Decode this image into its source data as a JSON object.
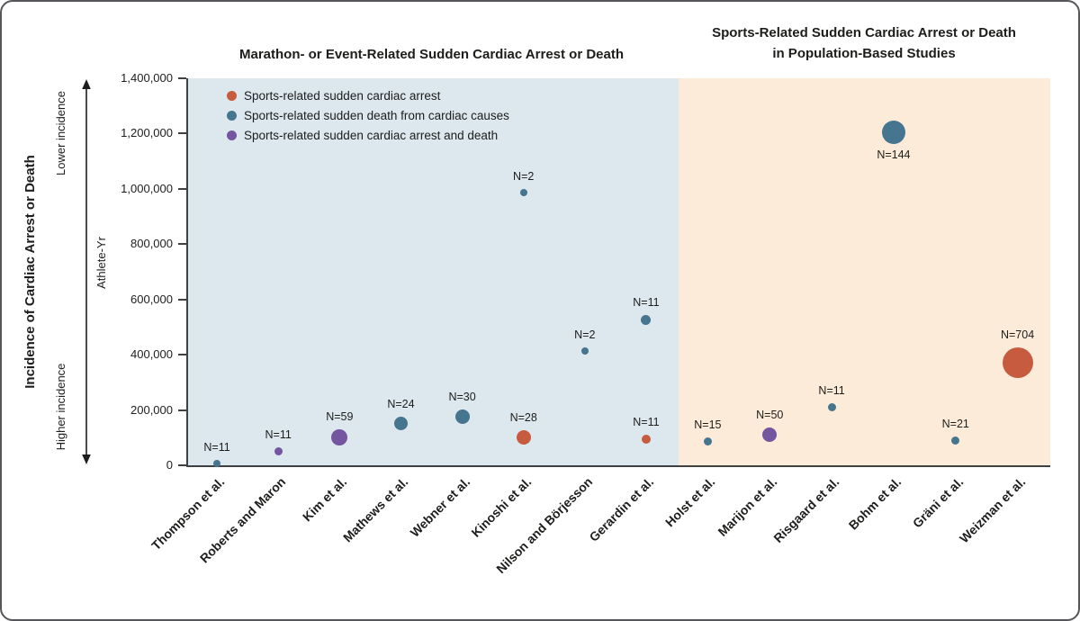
{
  "figure": {
    "left_panel_title": "Marathon- or Event-Related Sudden Cardiac Arrest or Death",
    "right_panel_title_line1": "Sports-Related Sudden Cardiac Arrest or Death",
    "right_panel_title_line2": "in Population-Based Studies",
    "y_axis_outer_label": "Incidence of Cardiac Arrest or Death",
    "arrow_top_label": "Lower incidence",
    "arrow_bottom_label": "Higher incidence",
    "y_axis_unit": "Athlete-Yr"
  },
  "legend": {
    "items": [
      {
        "label": "Sports-related sudden cardiac arrest",
        "series": "arrest",
        "color": "#c75b40"
      },
      {
        "label": "Sports-related sudden death from cardiac causes",
        "series": "death",
        "color": "#45758f"
      },
      {
        "label": "Sports-related sudden cardiac arrest and death",
        "series": "arrest_and_death",
        "color": "#7355a0"
      }
    ]
  },
  "chart_data": {
    "type": "scatter",
    "ylabel": "Athlete-Yr",
    "ylim": [
      0,
      1400000
    ],
    "yticks": [
      0,
      200000,
      400000,
      600000,
      800000,
      1000000,
      1200000,
      1400000
    ],
    "grid": false,
    "legend_position": "top-left inside plot",
    "series_colors": {
      "arrest": "#c75b40",
      "death": "#45758f",
      "arrest_and_death": "#7355a0"
    },
    "panels": [
      {
        "title": "Marathon- or Event-Related Sudden Cardiac Arrest or Death",
        "background": "#dce8ee",
        "categories": [
          "Thompson et al.",
          "Roberts and Maron",
          "Kim et al.",
          "Mathews et al.",
          "Webner et al.",
          "Kinoshi et al.",
          "Nilson and Börjesson",
          "Gerardin et al."
        ]
      },
      {
        "title": "Sports-Related Sudden Cardiac Arrest or Death in Population-Based Studies",
        "background": "#fdebd9",
        "categories": [
          "Holst et al.",
          "Marijon et al.",
          "Risgaard et al.",
          "Bohm et al.",
          "Gräni et al.",
          "Weizman et al."
        ]
      }
    ],
    "points": [
      {
        "study": "Thompson et al.",
        "panel": 0,
        "cat": 0,
        "n": 11,
        "value": 8000,
        "series": "death",
        "r": 4,
        "label_pos": "above"
      },
      {
        "study": "Roberts and Maron",
        "panel": 0,
        "cat": 1,
        "n": 11,
        "value": 50000,
        "series": "arrest_and_death",
        "r": 4.5,
        "label_pos": "above"
      },
      {
        "study": "Kim et al.",
        "panel": 0,
        "cat": 2,
        "n": 59,
        "value": 100000,
        "series": "arrest_and_death",
        "r": 9,
        "label_pos": "above"
      },
      {
        "study": "Mathews et al.",
        "panel": 0,
        "cat": 3,
        "n": 24,
        "value": 150000,
        "series": "death",
        "r": 7.5,
        "label_pos": "above"
      },
      {
        "study": "Webner et al.",
        "panel": 0,
        "cat": 4,
        "n": 30,
        "value": 175000,
        "series": "death",
        "r": 8,
        "label_pos": "above"
      },
      {
        "study": "Kinoshi et al.",
        "panel": 0,
        "cat": 5,
        "n": 2,
        "value": 985000,
        "series": "death",
        "r": 4,
        "label_pos": "above"
      },
      {
        "study": "Kinoshi et al.",
        "panel": 0,
        "cat": 5,
        "n": 28,
        "value": 100000,
        "series": "arrest",
        "r": 8,
        "label_pos": "above"
      },
      {
        "study": "Nilson and Börjesson",
        "panel": 0,
        "cat": 6,
        "n": 2,
        "value": 415000,
        "series": "death",
        "r": 4,
        "label_pos": "above"
      },
      {
        "study": "Gerardin et al.",
        "panel": 0,
        "cat": 7,
        "n": 11,
        "value": 525000,
        "series": "death",
        "r": 5.5,
        "label_pos": "above"
      },
      {
        "study": "Gerardin et al.",
        "panel": 0,
        "cat": 7,
        "n": 11,
        "value": 95000,
        "series": "arrest",
        "r": 5,
        "label_pos": "above"
      },
      {
        "study": "Holst et al.",
        "panel": 1,
        "cat": 0,
        "n": 15,
        "value": 85000,
        "series": "death",
        "r": 4.5,
        "label_pos": "above"
      },
      {
        "study": "Marijon et al.",
        "panel": 1,
        "cat": 1,
        "n": 50,
        "value": 110000,
        "series": "arrest_and_death",
        "r": 8,
        "label_pos": "above"
      },
      {
        "study": "Risgaard et al.",
        "panel": 1,
        "cat": 2,
        "n": 11,
        "value": 210000,
        "series": "death",
        "r": 4.5,
        "label_pos": "above"
      },
      {
        "study": "Bohm et al.",
        "panel": 1,
        "cat": 3,
        "n": 144,
        "value": 1205000,
        "series": "death",
        "r": 13,
        "label_pos": "below"
      },
      {
        "study": "Gräni et al.",
        "panel": 1,
        "cat": 4,
        "n": 21,
        "value": 90000,
        "series": "death",
        "r": 4.5,
        "label_pos": "above"
      },
      {
        "study": "Weizman et al.",
        "panel": 1,
        "cat": 5,
        "n": 704,
        "value": 370000,
        "series": "arrest",
        "r": 17,
        "label_pos": "above"
      }
    ]
  }
}
